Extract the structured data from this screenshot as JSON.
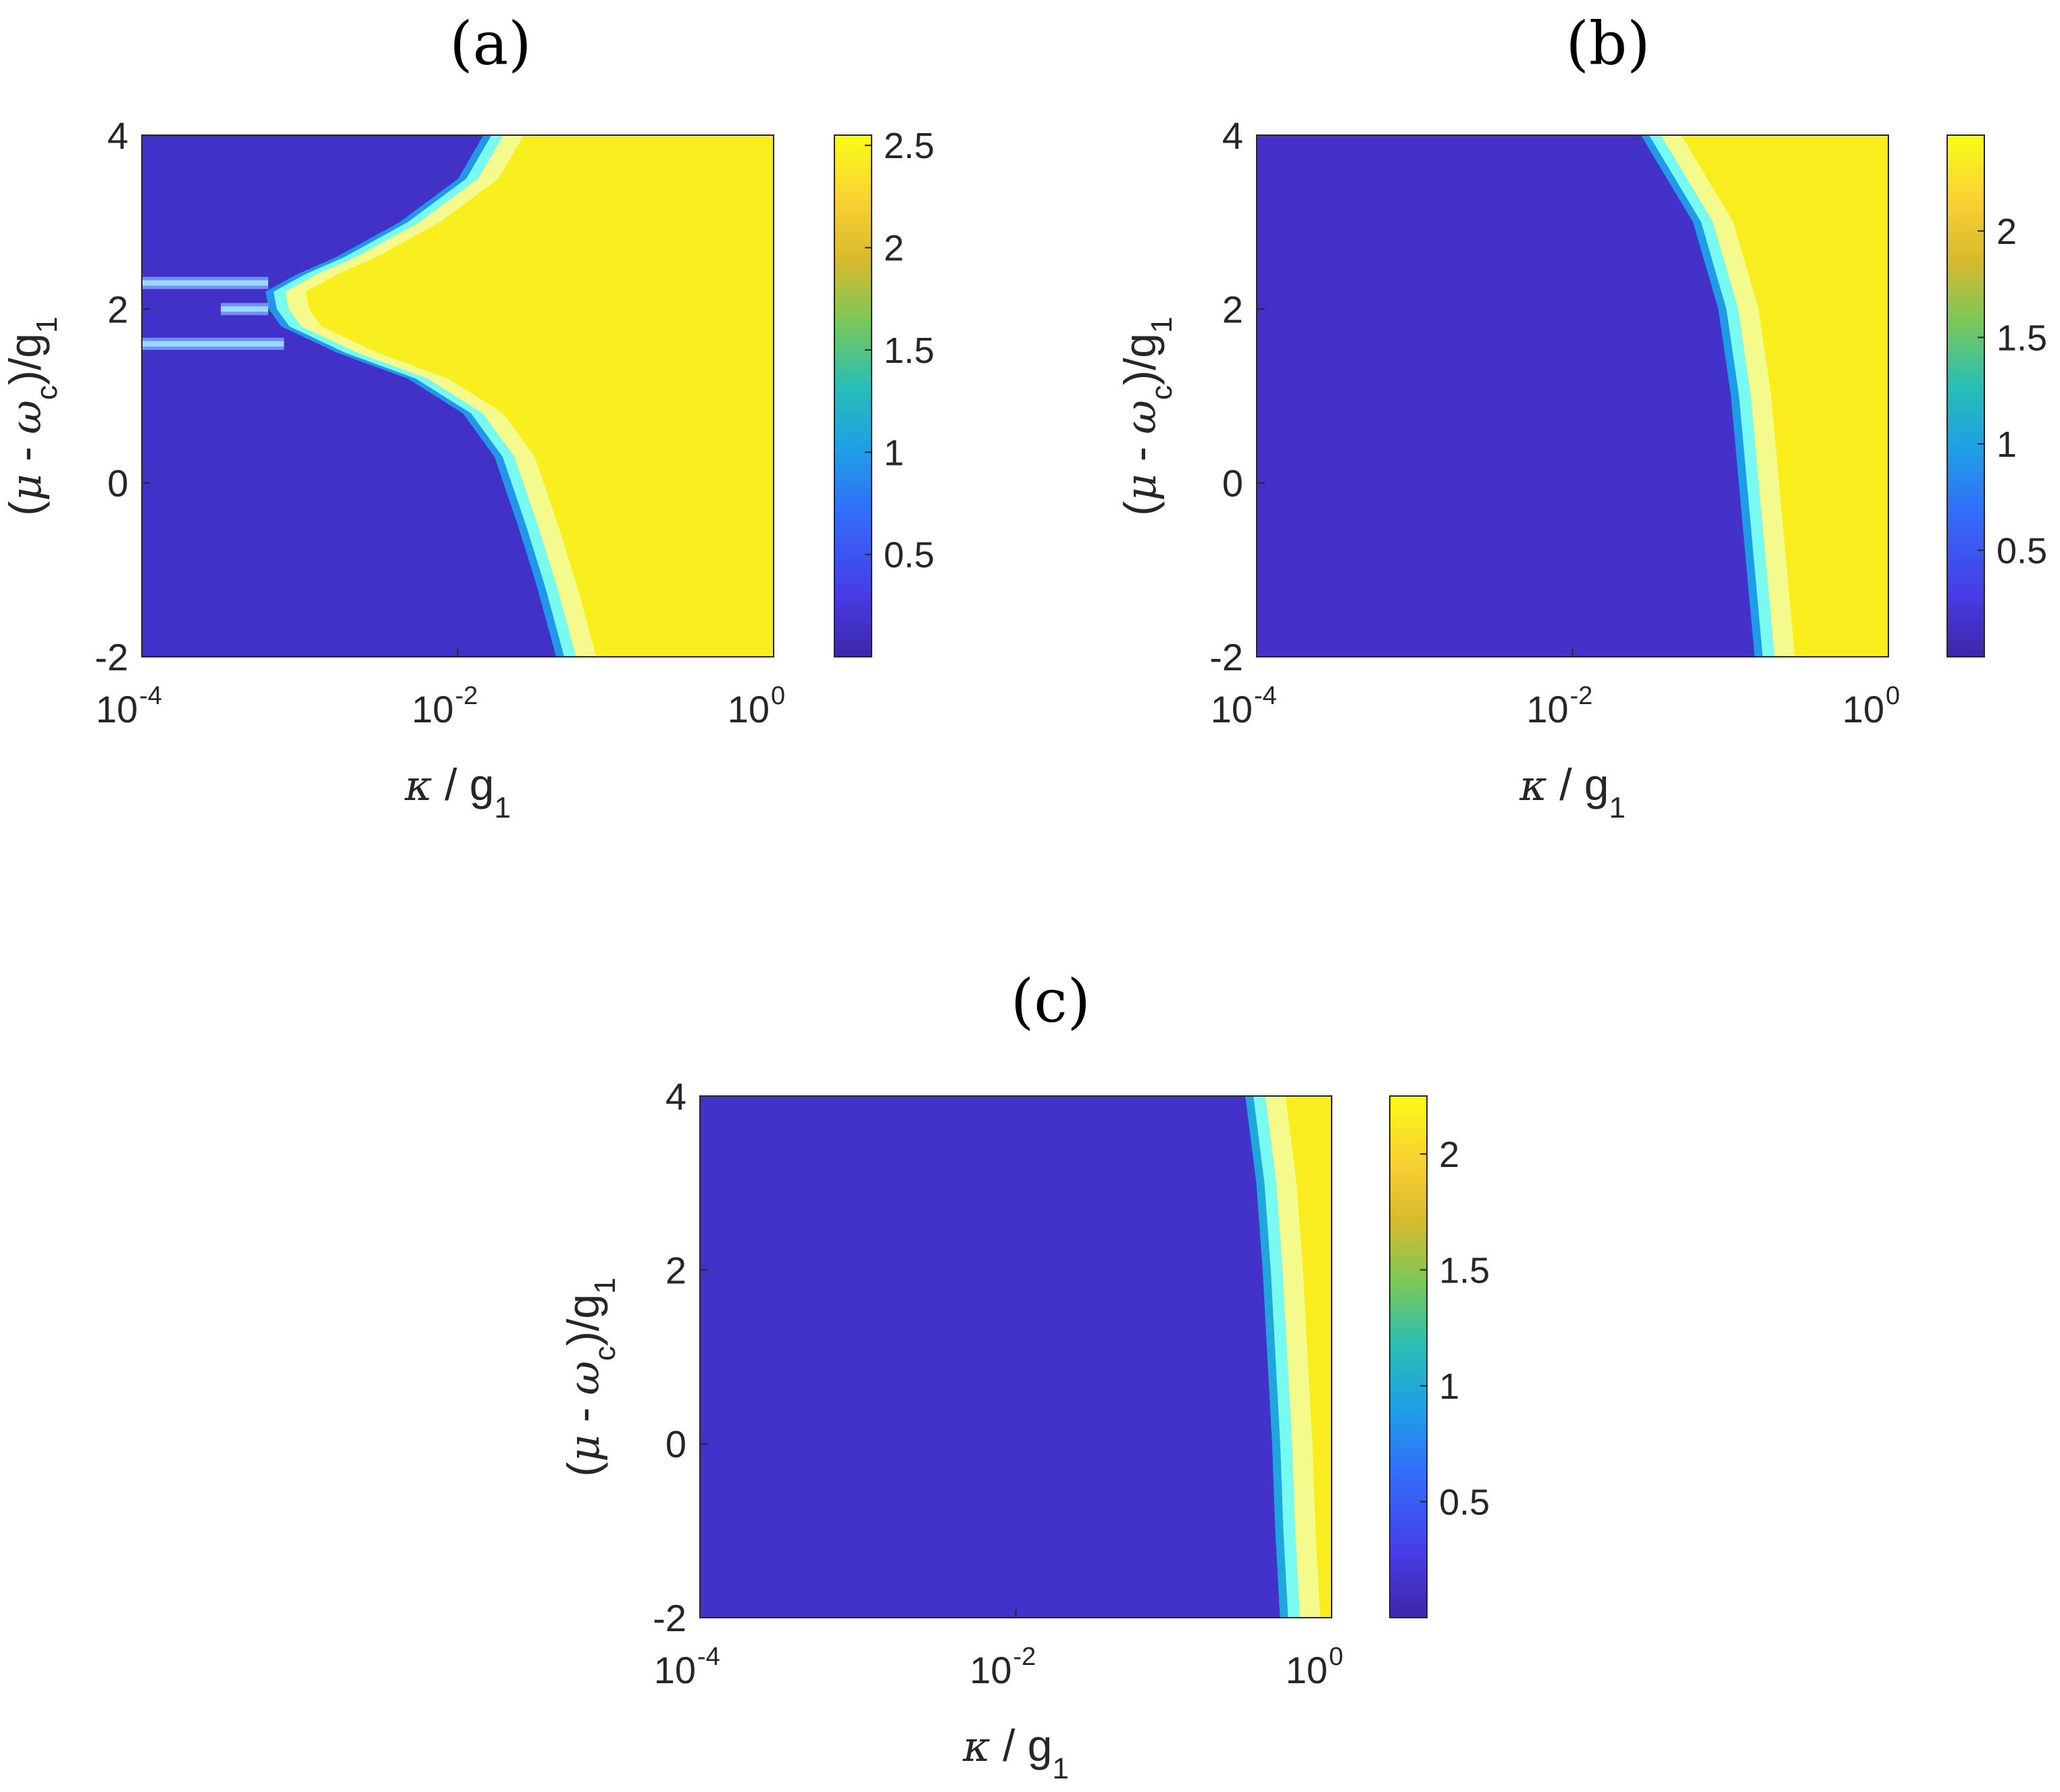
{
  "chart_data": [
    {
      "type": "heatmap",
      "panel_label": "(a)",
      "xlabel": {
        "symbol": "κ",
        "text": " / g",
        "sub": "1"
      },
      "ylabel": {
        "open": "(",
        "mu": "μ",
        "mid": " - ",
        "omega": "ω",
        "omega_sub": "c",
        "close": ")/g",
        "sub": "1"
      },
      "x_scale": "log",
      "xlim": [
        0.0001,
        1
      ],
      "ylim": [
        -2,
        4
      ],
      "x_ticks": [
        {
          "base": "10",
          "exp": "-4",
          "value": 0.0001
        },
        {
          "base": "10",
          "exp": "-2",
          "value": 0.01
        },
        {
          "base": "10",
          "exp": "0",
          "value": 1
        }
      ],
      "y_ticks": [
        {
          "label": "4",
          "value": 4
        },
        {
          "label": "2",
          "value": 2
        },
        {
          "label": "0",
          "value": 0
        },
        {
          "label": "-2",
          "value": -2
        }
      ],
      "colorbar": {
        "min": 0,
        "max": 2.55,
        "ticks": [
          {
            "label": "2.5",
            "value": 2.5
          },
          {
            "label": "2",
            "value": 2
          },
          {
            "label": "1.5",
            "value": 1.5
          },
          {
            "label": "1",
            "value": 1
          },
          {
            "label": "0.5",
            "value": 0.5
          }
        ]
      },
      "low_value": 0.15,
      "high_value": 2.45,
      "boundary": [
        {
          "y": 4.0,
          "log10_kappa": -1.82
        },
        {
          "y": 3.5,
          "log10_kappa": -1.98
        },
        {
          "y": 3.0,
          "log10_kappa": -2.35
        },
        {
          "y": 2.6,
          "log10_kappa": -2.75
        },
        {
          "y": 2.4,
          "log10_kappa": -3.0
        },
        {
          "y": 2.2,
          "log10_kappa": -3.2
        },
        {
          "y": 2.0,
          "log10_kappa": -3.18
        },
        {
          "y": 1.8,
          "log10_kappa": -3.1
        },
        {
          "y": 1.5,
          "log10_kappa": -2.75
        },
        {
          "y": 1.2,
          "log10_kappa": -2.3
        },
        {
          "y": 0.8,
          "log10_kappa": -1.95
        },
        {
          "y": 0.3,
          "log10_kappa": -1.75
        },
        {
          "y": -0.5,
          "log10_kappa": -1.6
        },
        {
          "y": -1.2,
          "log10_kappa": -1.48
        },
        {
          "y": -2.0,
          "log10_kappa": -1.36
        }
      ],
      "streaks": [
        {
          "y": 2.3,
          "log10_kappa_from": -4.0,
          "log10_kappa_to": -3.2
        },
        {
          "y": 1.6,
          "log10_kappa_from": -4.0,
          "log10_kappa_to": -3.1
        },
        {
          "y": 2.0,
          "log10_kappa_from": -3.5,
          "log10_kappa_to": -3.2
        }
      ]
    },
    {
      "type": "heatmap",
      "panel_label": "(b)",
      "xlabel": {
        "symbol": "κ",
        "text": " / g",
        "sub": "1"
      },
      "ylabel": {
        "open": "(",
        "mu": "μ",
        "mid": " - ",
        "omega": "ω",
        "omega_sub": "c",
        "close": ")/g",
        "sub": "1"
      },
      "x_scale": "log",
      "xlim": [
        0.0001,
        1
      ],
      "ylim": [
        -2,
        4
      ],
      "x_ticks": [
        {
          "base": "10",
          "exp": "-4",
          "value": 0.0001
        },
        {
          "base": "10",
          "exp": "-2",
          "value": 0.01
        },
        {
          "base": "10",
          "exp": "0",
          "value": 1
        }
      ],
      "y_ticks": [
        {
          "label": "4",
          "value": 4
        },
        {
          "label": "2",
          "value": 2
        },
        {
          "label": "0",
          "value": 0
        },
        {
          "label": "-2",
          "value": -2
        }
      ],
      "colorbar": {
        "min": 0,
        "max": 2.45,
        "ticks": [
          {
            "label": "2",
            "value": 2
          },
          {
            "label": "1.5",
            "value": 1.5
          },
          {
            "label": "1",
            "value": 1
          },
          {
            "label": "0.5",
            "value": 0.5
          }
        ]
      },
      "low_value": 0.15,
      "high_value": 2.35,
      "boundary": [
        {
          "y": 4.0,
          "log10_kappa": -1.55
        },
        {
          "y": 3.0,
          "log10_kappa": -1.22
        },
        {
          "y": 2.0,
          "log10_kappa": -1.06
        },
        {
          "y": 1.0,
          "log10_kappa": -0.98
        },
        {
          "y": 0.0,
          "log10_kappa": -0.93
        },
        {
          "y": -1.0,
          "log10_kappa": -0.88
        },
        {
          "y": -2.0,
          "log10_kappa": -0.83
        }
      ],
      "streaks": []
    },
    {
      "type": "heatmap",
      "panel_label": "(c)",
      "xlabel": {
        "symbol": "κ",
        "text": " / g",
        "sub": "1"
      },
      "ylabel": {
        "open": "(",
        "mu": "μ",
        "mid": " - ",
        "omega": "ω",
        "omega_sub": "c",
        "close": ")/g",
        "sub": "1"
      },
      "x_scale": "log",
      "xlim": [
        0.0001,
        1
      ],
      "ylim": [
        -2,
        4
      ],
      "x_ticks": [
        {
          "base": "10",
          "exp": "-4",
          "value": 0.0001
        },
        {
          "base": "10",
          "exp": "-2",
          "value": 0.01
        },
        {
          "base": "10",
          "exp": "0",
          "value": 1
        }
      ],
      "y_ticks": [
        {
          "label": "4",
          "value": 4
        },
        {
          "label": "2",
          "value": 2
        },
        {
          "label": "0",
          "value": 0
        },
        {
          "label": "-2",
          "value": -2
        }
      ],
      "colorbar": {
        "min": 0,
        "max": 2.25,
        "ticks": [
          {
            "label": "2",
            "value": 2
          },
          {
            "label": "1.5",
            "value": 1.5
          },
          {
            "label": "1",
            "value": 1
          },
          {
            "label": "0.5",
            "value": 0.5
          }
        ]
      },
      "low_value": 0.15,
      "high_value": 2.15,
      "boundary": [
        {
          "y": 4.0,
          "log10_kappa": -0.53
        },
        {
          "y": 3.0,
          "log10_kappa": -0.46
        },
        {
          "y": 2.0,
          "log10_kappa": -0.42
        },
        {
          "y": 1.0,
          "log10_kappa": -0.39
        },
        {
          "y": 0.0,
          "log10_kappa": -0.36
        },
        {
          "y": -1.0,
          "log10_kappa": -0.34
        },
        {
          "y": -2.0,
          "log10_kappa": -0.31
        }
      ],
      "streaks": []
    }
  ]
}
